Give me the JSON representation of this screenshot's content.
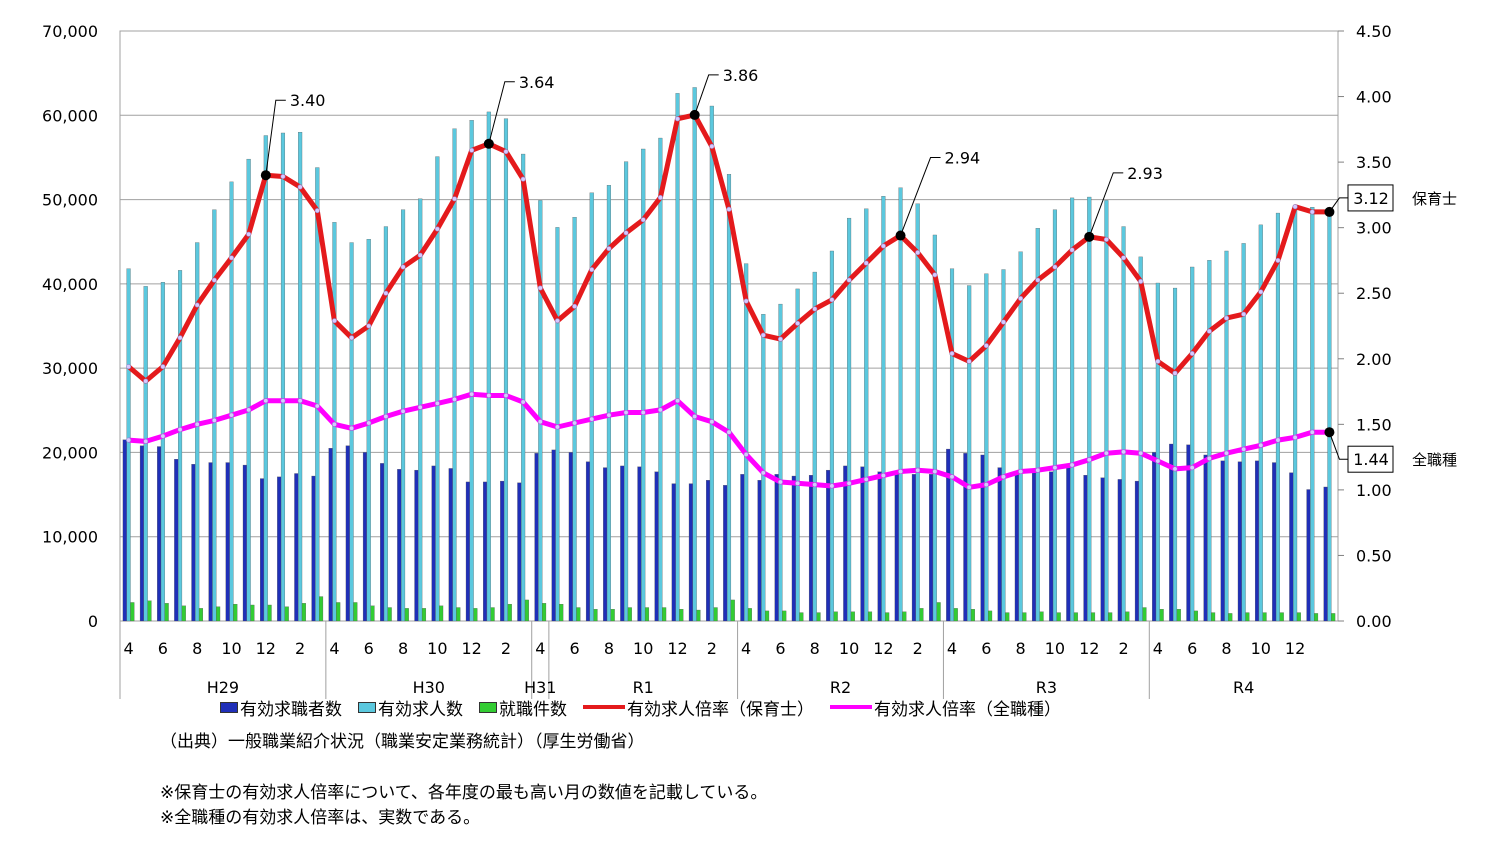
{
  "chart_data": {
    "type": "bar",
    "left_axis": {
      "min": 0,
      "max": 70000,
      "ticks": [
        "0",
        "10,000",
        "20,000",
        "30,000",
        "40,000",
        "50,000",
        "60,000",
        "70,000"
      ]
    },
    "right_axis": {
      "min": 0,
      "max": 4.5,
      "ticks": [
        "0.00",
        "0.50",
        "1.00",
        "1.50",
        "2.00",
        "2.50",
        "3.00",
        "3.50",
        "4.00",
        "4.50"
      ]
    },
    "grid": "horizontal",
    "month_ticks": [
      "4",
      "6",
      "8",
      "10",
      "12",
      "2",
      "4",
      "6",
      "8",
      "10",
      "12",
      "2",
      "4",
      "6",
      "8",
      "10",
      "12",
      "2",
      "4",
      "6",
      "8",
      "10",
      "12",
      "2",
      "4",
      "6",
      "8",
      "10",
      "12",
      "2",
      "4",
      "6",
      "8",
      "10",
      "12"
    ],
    "year_labels": [
      "H29",
      "H30",
      "H31",
      "R1",
      "R2",
      "R3",
      "R4"
    ],
    "series": [
      {
        "name": "有効求職者数",
        "type": "bar",
        "axis": "left",
        "color": "#1f2fb8",
        "values": [
          21500,
          20800,
          20700,
          19200,
          18600,
          18800,
          18800,
          18500,
          16900,
          17100,
          17500,
          17200,
          20500,
          20800,
          20000,
          18700,
          18000,
          17900,
          18400,
          18100,
          16500,
          16500,
          16600,
          16400,
          19900,
          20300,
          20000,
          18900,
          18200,
          18400,
          18300,
          17700,
          16300,
          16300,
          16700,
          16100,
          17400,
          16700,
          17400,
          17200,
          17300,
          17900,
          18400,
          18300,
          17700,
          17700,
          17400,
          17400,
          20400,
          19900,
          19700,
          18200,
          17700,
          17900,
          17700,
          18400,
          17300,
          17000,
          16800,
          16600,
          20000,
          21000,
          20900,
          19700,
          19000,
          18900,
          19000,
          18800,
          17600,
          15600,
          15900
        ]
      },
      {
        "name": "有効求人数",
        "type": "bar",
        "axis": "left",
        "color": "#5bc8de",
        "values": [
          41800,
          39700,
          40200,
          41600,
          44900,
          48800,
          52100,
          54800,
          57600,
          57900,
          58000,
          53800,
          47300,
          44900,
          45300,
          46800,
          48800,
          50100,
          55100,
          58400,
          59400,
          60400,
          59600,
          55400,
          49900,
          46700,
          47900,
          50800,
          51700,
          54500,
          56000,
          57300,
          62600,
          63300,
          61100,
          53000,
          42400,
          36400,
          37600,
          39400,
          41400,
          43900,
          47800,
          48900,
          50400,
          51400,
          49500,
          45800,
          41800,
          39800,
          41200,
          41700,
          43800,
          46600,
          48800,
          50200,
          50300,
          49900,
          46800,
          43200,
          40100,
          39500,
          42000,
          42800,
          43900,
          44800,
          47000,
          48400,
          49100,
          49100,
          48600
        ]
      },
      {
        "name": "就職件数",
        "type": "bar",
        "axis": "left",
        "color": "#33cc33",
        "values": [
          2200,
          2400,
          2100,
          1800,
          1500,
          1700,
          2000,
          1900,
          1900,
          1700,
          2100,
          2900,
          2200,
          2200,
          1800,
          1600,
          1500,
          1500,
          1800,
          1600,
          1500,
          1600,
          2000,
          2500,
          2100,
          2000,
          1600,
          1400,
          1400,
          1600,
          1600,
          1600,
          1400,
          1300,
          1600,
          2500,
          1500,
          1200,
          1200,
          1000,
          1000,
          1100,
          1100,
          1100,
          1000,
          1100,
          1500,
          2200,
          1500,
          1400,
          1200,
          1000,
          1000,
          1100,
          1000,
          1000,
          1000,
          1000,
          1100,
          1600,
          1400,
          1400,
          1200,
          1000,
          900,
          1000,
          1000,
          1000,
          1000,
          900,
          900
        ]
      },
      {
        "name": "有効求人倍率（保育士）",
        "type": "line",
        "axis": "right",
        "color": "#e41a1c",
        "values": [
          1.94,
          1.83,
          1.94,
          2.16,
          2.41,
          2.6,
          2.77,
          2.95,
          3.4,
          3.39,
          3.31,
          3.13,
          2.29,
          2.16,
          2.25,
          2.5,
          2.7,
          2.79,
          2.99,
          3.22,
          3.59,
          3.64,
          3.58,
          3.37,
          2.54,
          2.29,
          2.4,
          2.68,
          2.84,
          2.96,
          3.06,
          3.23,
          3.83,
          3.86,
          3.62,
          3.14,
          2.44,
          2.18,
          2.15,
          2.27,
          2.38,
          2.45,
          2.6,
          2.73,
          2.86,
          2.94,
          2.81,
          2.64,
          2.04,
          1.98,
          2.1,
          2.28,
          2.46,
          2.6,
          2.7,
          2.83,
          2.93,
          2.91,
          2.77,
          2.59,
          1.98,
          1.89,
          2.04,
          2.21,
          2.31,
          2.34,
          2.51,
          2.75,
          3.16,
          3.12,
          3.12
        ]
      },
      {
        "name": "有効求人倍率（全職種）",
        "type": "line",
        "axis": "right",
        "color": "#ff00ff",
        "values": [
          1.38,
          1.37,
          1.41,
          1.46,
          1.5,
          1.53,
          1.57,
          1.61,
          1.68,
          1.68,
          1.68,
          1.64,
          1.5,
          1.47,
          1.51,
          1.56,
          1.6,
          1.63,
          1.66,
          1.69,
          1.73,
          1.72,
          1.72,
          1.67,
          1.52,
          1.48,
          1.51,
          1.54,
          1.57,
          1.59,
          1.59,
          1.61,
          1.68,
          1.56,
          1.52,
          1.44,
          1.27,
          1.13,
          1.06,
          1.05,
          1.04,
          1.03,
          1.05,
          1.08,
          1.11,
          1.14,
          1.15,
          1.14,
          1.1,
          1.02,
          1.04,
          1.1,
          1.14,
          1.15,
          1.17,
          1.19,
          1.23,
          1.28,
          1.29,
          1.28,
          1.22,
          1.16,
          1.17,
          1.24,
          1.28,
          1.31,
          1.34,
          1.38,
          1.4,
          1.44,
          1.44
        ]
      }
    ],
    "annotations": [
      {
        "index": 8,
        "series": 3,
        "text": "3.40"
      },
      {
        "index": 21,
        "series": 3,
        "text": "3.64"
      },
      {
        "index": 33,
        "series": 3,
        "text": "3.86"
      },
      {
        "index": 45,
        "series": 3,
        "text": "2.94"
      },
      {
        "index": 56,
        "series": 3,
        "text": "2.93"
      }
    ],
    "end_labels": [
      {
        "series": 3,
        "value": "3.12",
        "label": "保育士"
      },
      {
        "series": 4,
        "value": "1.44",
        "label": "全職種"
      }
    ]
  },
  "source": "（出典）一般職業紹介状況（職業安定業務統計）（厚生労働省）",
  "notes": [
    "※保育士の有効求人倍率について、各年度の最も高い月の数値を記載している。",
    "※全職種の有効求人倍率は、実数である。"
  ]
}
